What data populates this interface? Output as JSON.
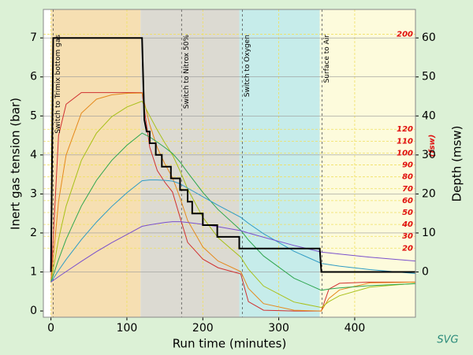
{
  "chart_data": {
    "type": "line",
    "xlabel": "Run time (minutes)",
    "ylabel": "Inert gas tension (bar)",
    "y2label": "Depth (msw)",
    "y3label": "(fsw)",
    "logo": "SVG",
    "xlim": [
      -10,
      480
    ],
    "ylim": [
      -0.16,
      7.73
    ],
    "y2lim": [
      -11.6,
      67.3
    ],
    "xticks": [
      0,
      100,
      200,
      300,
      400
    ],
    "yticks": [
      0,
      1,
      2,
      3,
      4,
      5,
      6,
      7
    ],
    "y2ticks": [
      0,
      10,
      20,
      30,
      40,
      50,
      60
    ],
    "y3ticks": [
      {
        "value": 6.1,
        "label": "20"
      },
      {
        "value": 9.14,
        "label": "30"
      },
      {
        "value": 12.19,
        "label": "40"
      },
      {
        "value": 15.24,
        "label": "50"
      },
      {
        "value": 18.29,
        "label": "60"
      },
      {
        "value": 21.34,
        "label": "70"
      },
      {
        "value": 24.38,
        "label": "80"
      },
      {
        "value": 27.43,
        "label": "90"
      },
      {
        "value": 30.48,
        "label": "100"
      },
      {
        "value": 33.53,
        "label": "110"
      },
      {
        "value": 36.58,
        "label": "120"
      },
      {
        "value": 60.96,
        "label": "200"
      }
    ],
    "grid": true,
    "bands": [
      {
        "from": 0,
        "to": 118,
        "color": "#f6dfb2"
      },
      {
        "from": 118,
        "to": 248,
        "color": "#dcdad2"
      },
      {
        "from": 248,
        "to": 354,
        "color": "#c6ecea"
      },
      {
        "from": 354,
        "to": 480,
        "color": "#fdfbdc"
      }
    ],
    "annotations": [
      {
        "text": "Switch to Trimix bottom gas",
        "x": 3
      },
      {
        "text": "Switch to Nitrox 50%",
        "x": 172
      },
      {
        "text": "Switch to Oxygen",
        "x": 252
      },
      {
        "text": "Surface to Air",
        "x": 357
      }
    ],
    "x": [
      0,
      10,
      20,
      40,
      60,
      80,
      100,
      120,
      130,
      140,
      150,
      160,
      170,
      180,
      200,
      220,
      250,
      260,
      280,
      320,
      356,
      366,
      380,
      420,
      480
    ],
    "series": [
      {
        "color": "#d03030",
        "values": [
          0.74,
          4.5,
          5.3,
          5.6,
          5.6,
          5.6,
          5.6,
          5.6,
          4.2,
          3.6,
          3.3,
          3.05,
          2.4,
          1.76,
          1.33,
          1.11,
          0.95,
          0.24,
          0.02,
          0,
          0,
          0.56,
          0.71,
          0.74,
          0.74
        ]
      },
      {
        "color": "#e5891c",
        "values": [
          0.74,
          2.81,
          4.0,
          5.07,
          5.43,
          5.54,
          5.58,
          5.59,
          4.78,
          4.19,
          3.77,
          3.42,
          2.9,
          2.32,
          1.64,
          1.28,
          1.01,
          0.58,
          0.19,
          0.02,
          0,
          0.32,
          0.54,
          0.72,
          0.74
        ]
      },
      {
        "color": "#a8c01a",
        "values": [
          0.74,
          1.84,
          2.69,
          3.86,
          4.56,
          4.98,
          5.23,
          5.38,
          5.0,
          4.64,
          4.31,
          4.0,
          3.59,
          3.13,
          2.4,
          1.88,
          1.38,
          1.07,
          0.64,
          0.23,
          0.09,
          0.24,
          0.39,
          0.61,
          0.71
        ]
      },
      {
        "color": "#2fa650",
        "values": [
          0.74,
          1.32,
          1.84,
          2.69,
          3.35,
          3.86,
          4.25,
          4.56,
          4.46,
          4.33,
          4.19,
          4.04,
          3.82,
          3.55,
          3.04,
          2.6,
          2.07,
          1.82,
          1.41,
          0.84,
          0.53,
          0.56,
          0.59,
          0.65,
          0.7
        ]
      },
      {
        "color": "#2f9cc4",
        "values": [
          0.74,
          1.04,
          1.32,
          1.83,
          2.28,
          2.68,
          3.03,
          3.34,
          3.36,
          3.36,
          3.35,
          3.33,
          3.26,
          3.15,
          2.93,
          2.71,
          2.4,
          2.25,
          1.98,
          1.53,
          1.22,
          1.19,
          1.15,
          1.06,
          0.96
        ]
      },
      {
        "color": "#7a50cc",
        "values": [
          0.74,
          0.88,
          1.01,
          1.27,
          1.52,
          1.75,
          1.96,
          2.17,
          2.21,
          2.24,
          2.27,
          2.29,
          2.29,
          2.27,
          2.22,
          2.16,
          2.06,
          2.0,
          1.89,
          1.68,
          1.51,
          1.49,
          1.46,
          1.38,
          1.28
        ]
      },
      {
        "color": "#000000",
        "axis": "y2",
        "x": [
          0,
          3,
          120,
          123,
          126,
          130,
          130,
          138,
          138,
          146,
          146,
          158,
          158,
          170,
          170,
          180,
          180,
          186,
          186,
          200,
          200,
          219,
          219,
          248,
          248,
          354,
          356,
          480
        ],
        "values": [
          0,
          60,
          60,
          39,
          36,
          36,
          33,
          33,
          30,
          30,
          27,
          27,
          24,
          24,
          21,
          21,
          18,
          18,
          15,
          15,
          12,
          12,
          9,
          9,
          6,
          6,
          0,
          0
        ]
      }
    ]
  }
}
